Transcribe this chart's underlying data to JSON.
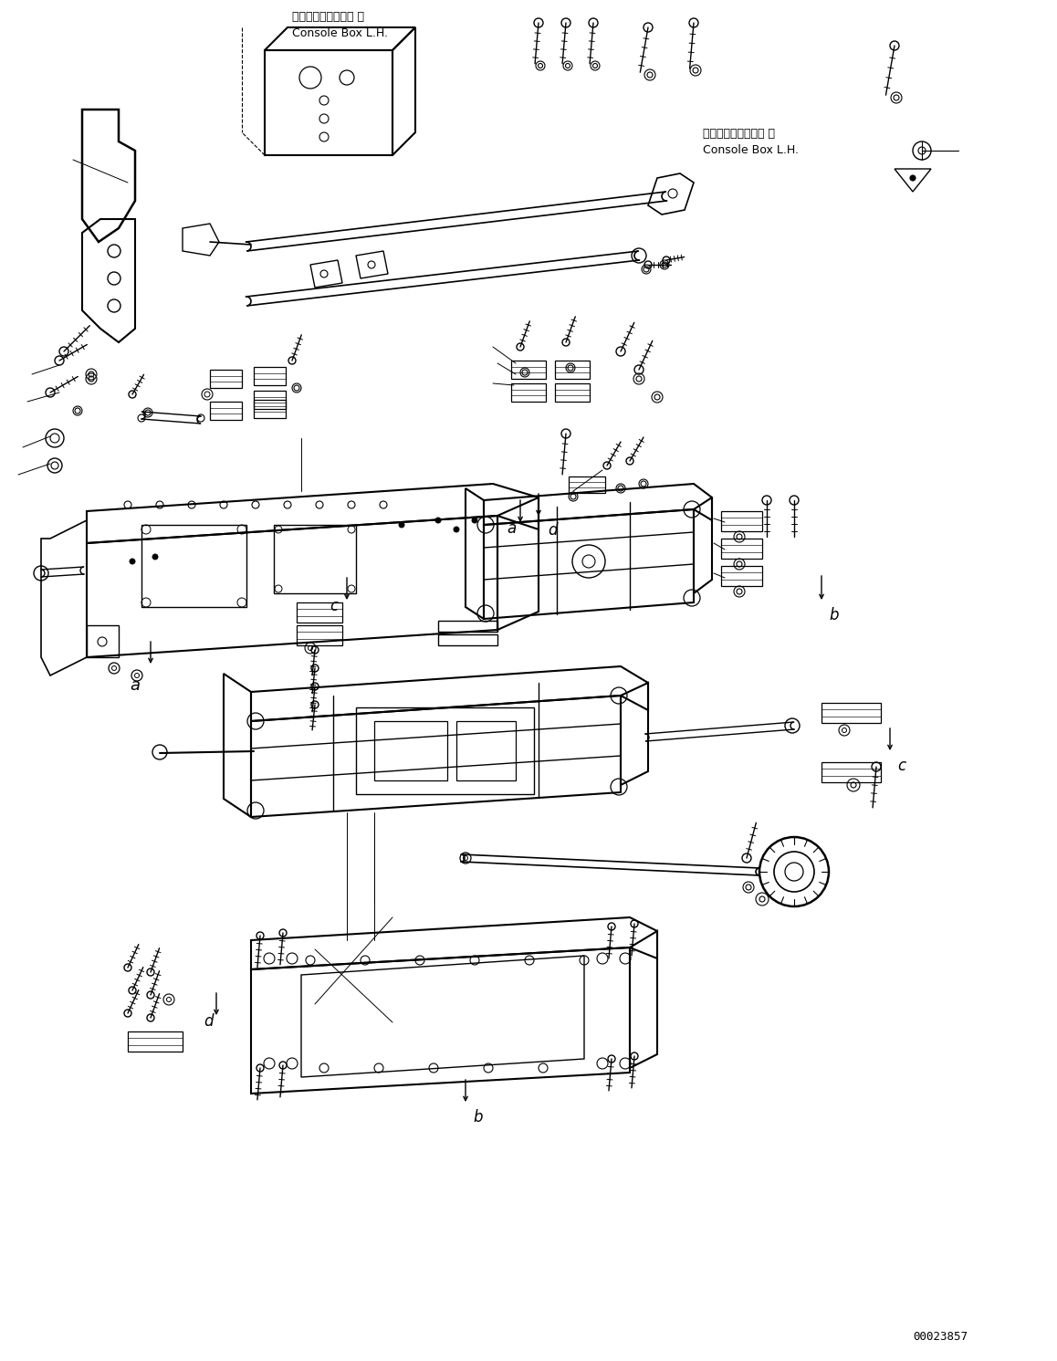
{
  "background_color": "#ffffff",
  "fig_width": 11.58,
  "fig_height": 14.91,
  "dpi": 100,
  "text_color": "#000000",
  "line_color": "#000000",
  "labels": {
    "console_box_top_j": "コンソールボックス 左",
    "console_box_top_e": "Console Box L.H.",
    "console_box_right_j": "コンソールボックス 左",
    "console_box_right_e": "Console Box L.H.",
    "part_number": "00023857"
  }
}
